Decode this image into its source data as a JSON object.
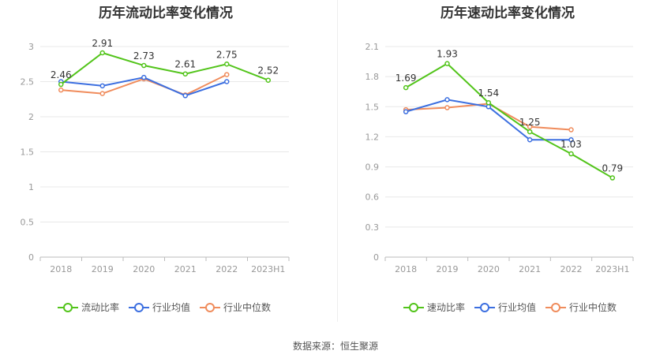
{
  "source_text": "数据来源：恒生聚源",
  "colors": {
    "green": "#52c41a",
    "blue": "#3c6fe0",
    "orange": "#f08c5c",
    "grid": "#e8e8e8",
    "axis": "#999999"
  },
  "chart_data": [
    {
      "type": "line",
      "title": "历年流动比率变化情况",
      "categories": [
        "2018",
        "2019",
        "2020",
        "2021",
        "2022",
        "2023H1"
      ],
      "ylim": [
        0,
        3
      ],
      "yticks": [
        "0",
        "0.5",
        "1",
        "1.5",
        "2",
        "2.5",
        "3"
      ],
      "ytick_values": [
        0,
        0.5,
        1,
        1.5,
        2,
        2.5,
        3
      ],
      "grid": true,
      "legend_position": "bottom",
      "series": [
        {
          "name": "流动比率",
          "color": "#52c41a",
          "values": [
            2.46,
            2.91,
            2.73,
            2.61,
            2.75,
            2.52
          ],
          "labels": [
            "2.46",
            "2.91",
            "2.73",
            "2.61",
            "2.75",
            "2.52"
          ]
        },
        {
          "name": "行业均值",
          "color": "#3c6fe0",
          "values": [
            2.5,
            2.44,
            2.56,
            2.3,
            2.5,
            null
          ]
        },
        {
          "name": "行业中位数",
          "color": "#f08c5c",
          "values": [
            2.38,
            2.33,
            2.54,
            2.31,
            2.6,
            null
          ]
        }
      ]
    },
    {
      "type": "line",
      "title": "历年速动比率变化情况",
      "categories": [
        "2018",
        "2019",
        "2020",
        "2021",
        "2022",
        "2023H1"
      ],
      "ylim": [
        0,
        2.1
      ],
      "yticks": [
        "0",
        "0.3",
        "0.6",
        "0.9",
        "1.2",
        "1.5",
        "1.8",
        "2.1"
      ],
      "ytick_values": [
        0,
        0.3,
        0.6,
        0.9,
        1.2,
        1.5,
        1.8,
        2.1
      ],
      "grid": true,
      "legend_position": "bottom",
      "series": [
        {
          "name": "速动比率",
          "color": "#52c41a",
          "values": [
            1.69,
            1.93,
            1.54,
            1.25,
            1.03,
            0.79
          ],
          "labels": [
            "1.69",
            "1.93",
            "1.54",
            "1.25",
            "1.03",
            "0.79"
          ]
        },
        {
          "name": "行业均值",
          "color": "#3c6fe0",
          "values": [
            1.45,
            1.57,
            1.5,
            1.17,
            1.17,
            null
          ]
        },
        {
          "name": "行业中位数",
          "color": "#f08c5c",
          "values": [
            1.47,
            1.49,
            1.53,
            1.3,
            1.27,
            null
          ]
        }
      ]
    }
  ]
}
